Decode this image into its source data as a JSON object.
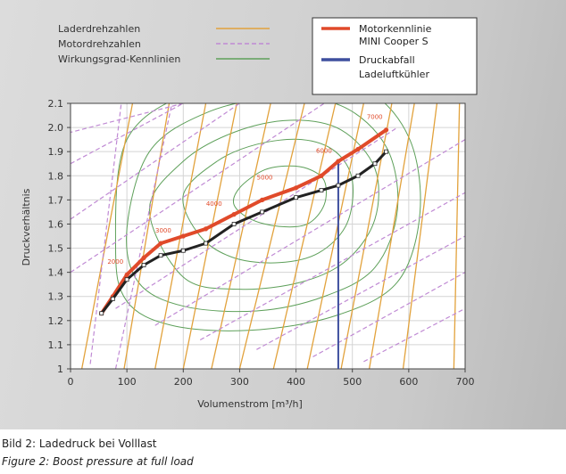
{
  "caption": {
    "de": "Bild 2: Ladedruck bei Volllast",
    "en": "Figure 2: Boost pressure at full load"
  },
  "chart_data": {
    "type": "line",
    "title": "",
    "xlabel": "Volumenstrom [m³/h]",
    "ylabel": "Druckverhältnis",
    "xlim": [
      0,
      700
    ],
    "ylim": [
      1.0,
      2.1
    ],
    "x_ticks": [
      "0",
      "100",
      "200",
      "300",
      "400",
      "500",
      "600",
      "700"
    ],
    "y_ticks": [
      "1",
      "1.1",
      "1.2",
      "1.3",
      "1.4",
      "1.5",
      "1.6",
      "1.7",
      "1.8",
      "1.9",
      "2.0",
      "2.1"
    ],
    "grid": true,
    "legend_left": [
      {
        "label": "Laderdrehzahlen",
        "color": "#e2a23c",
        "style": "solid"
      },
      {
        "label": "Motordrehzahlen",
        "color": "#c08ad4",
        "style": "dashed"
      },
      {
        "label": "Wirkungsgrad-Kennlinien",
        "color": "#5ea05a",
        "style": "solid"
      }
    ],
    "legend_right": [
      {
        "label": "Motorkennlinie",
        "color": "#e04a2a",
        "style": "thick"
      },
      {
        "label": "MINI Cooper S",
        "color": "#e04a2a",
        "style": "none"
      },
      {
        "label": "Druckabfall",
        "color": "#3e4f9e",
        "style": "thick"
      },
      {
        "label": "Ladeluftkühler",
        "color": "#3e4f9e",
        "style": "none"
      }
    ],
    "series": [
      {
        "name": "Motorkennlinie",
        "color": "#e04a2a",
        "x": [
          55,
          75,
          100,
          130,
          160,
          200,
          240,
          290,
          340,
          400,
          445,
          475,
          510,
          560
        ],
        "y": [
          1.23,
          1.3,
          1.39,
          1.46,
          1.52,
          1.55,
          1.58,
          1.64,
          1.7,
          1.75,
          1.8,
          1.86,
          1.91,
          1.99
        ]
      },
      {
        "color": "#222222",
        "x": [
          55,
          75,
          100,
          130,
          160,
          200,
          240,
          290,
          340,
          400,
          445,
          475,
          510,
          540,
          560
        ],
        "y": [
          1.23,
          1.29,
          1.37,
          1.43,
          1.47,
          1.49,
          1.52,
          1.6,
          1.65,
          1.71,
          1.74,
          1.76,
          1.8,
          1.85,
          1.9
        ]
      }
    ],
    "pressure_drop_line": {
      "x": 475,
      "y_from": 1.0,
      "y_to": 1.86,
      "color": "#3e4f9e"
    },
    "engine_speed_labels": [
      {
        "text": "2000",
        "x": 75,
        "y": 1.42
      },
      {
        "text": "3000",
        "x": 160,
        "y": 1.55
      },
      {
        "text": "4000",
        "x": 250,
        "y": 1.66
      },
      {
        "text": "5000",
        "x": 340,
        "y": 1.77
      },
      {
        "text": "6000",
        "x": 445,
        "y": 1.88
      },
      {
        "text": "7000",
        "x": 535,
        "y": 2.02
      }
    ],
    "orange_lines": [
      [
        [
          20,
          1.0
        ],
        [
          110,
          2.1
        ]
      ],
      [
        [
          95,
          1.0
        ],
        [
          175,
          2.1
        ]
      ],
      [
        [
          150,
          1.0
        ],
        [
          240,
          2.1
        ]
      ],
      [
        [
          200,
          1.0
        ],
        [
          295,
          2.1
        ]
      ],
      [
        [
          250,
          1.0
        ],
        [
          355,
          2.1
        ]
      ],
      [
        [
          300,
          1.0
        ],
        [
          415,
          2.1
        ]
      ],
      [
        [
          360,
          1.0
        ],
        [
          470,
          2.1
        ]
      ],
      [
        [
          420,
          1.0
        ],
        [
          520,
          2.1
        ]
      ],
      [
        [
          480,
          1.0
        ],
        [
          570,
          2.1
        ]
      ],
      [
        [
          530,
          1.0
        ],
        [
          610,
          2.1
        ]
      ],
      [
        [
          590,
          1.0
        ],
        [
          650,
          2.1
        ]
      ],
      [
        [
          680,
          1.0
        ],
        [
          690,
          2.1
        ]
      ]
    ],
    "purple_lines": [
      [
        [
          35,
          1.02
        ],
        [
          90,
          2.1
        ]
      ],
      [
        [
          80,
          1.0
        ],
        [
          180,
          2.1
        ]
      ],
      [
        [
          0,
          1.85
        ],
        [
          200,
          2.1
        ]
      ],
      [
        [
          0,
          1.62
        ],
        [
          300,
          2.1
        ]
      ],
      [
        [
          0,
          1.4
        ],
        [
          450,
          2.1
        ]
      ],
      [
        [
          80,
          1.25
        ],
        [
          580,
          2.0
        ]
      ],
      [
        [
          150,
          1.18
        ],
        [
          700,
          1.95
        ]
      ],
      [
        [
          230,
          1.12
        ],
        [
          700,
          1.73
        ]
      ],
      [
        [
          330,
          1.08
        ],
        [
          700,
          1.55
        ]
      ],
      [
        [
          430,
          1.05
        ],
        [
          700,
          1.4
        ]
      ],
      [
        [
          520,
          1.03
        ],
        [
          700,
          1.25
        ]
      ],
      [
        [
          200,
          2.1
        ],
        [
          0,
          1.98
        ]
      ]
    ],
    "green_islands": [
      [
        [
          300,
          1.75
        ],
        [
          340,
          1.82
        ],
        [
          380,
          1.84
        ],
        [
          420,
          1.83
        ],
        [
          450,
          1.78
        ],
        [
          450,
          1.68
        ],
        [
          420,
          1.6
        ],
        [
          370,
          1.59
        ],
        [
          320,
          1.62
        ],
        [
          290,
          1.68
        ]
      ],
      [
        [
          200,
          1.72
        ],
        [
          260,
          1.86
        ],
        [
          330,
          1.93
        ],
        [
          410,
          1.95
        ],
        [
          470,
          1.9
        ],
        [
          500,
          1.78
        ],
        [
          490,
          1.6
        ],
        [
          440,
          1.48
        ],
        [
          370,
          1.44
        ],
        [
          290,
          1.46
        ],
        [
          230,
          1.55
        ]
      ],
      [
        [
          140,
          1.66
        ],
        [
          200,
          1.86
        ],
        [
          290,
          1.98
        ],
        [
          390,
          2.03
        ],
        [
          480,
          1.99
        ],
        [
          540,
          1.83
        ],
        [
          540,
          1.62
        ],
        [
          490,
          1.45
        ],
        [
          410,
          1.36
        ],
        [
          300,
          1.33
        ],
        [
          200,
          1.38
        ]
      ],
      [
        [
          100,
          1.58
        ],
        [
          140,
          1.9
        ],
        [
          240,
          2.06
        ],
        [
          360,
          2.12
        ],
        [
          480,
          2.09
        ],
        [
          560,
          1.92
        ],
        [
          580,
          1.66
        ],
        [
          540,
          1.42
        ],
        [
          450,
          1.3
        ],
        [
          330,
          1.24
        ],
        [
          200,
          1.26
        ],
        [
          120,
          1.36
        ]
      ],
      [
        [
          80,
          1.5
        ],
        [
          100,
          1.95
        ],
        [
          220,
          2.15
        ],
        [
          380,
          2.2
        ],
        [
          520,
          2.16
        ],
        [
          600,
          1.96
        ],
        [
          620,
          1.65
        ],
        [
          580,
          1.36
        ],
        [
          470,
          1.22
        ],
        [
          320,
          1.16
        ],
        [
          180,
          1.18
        ],
        [
          100,
          1.28
        ]
      ]
    ]
  }
}
